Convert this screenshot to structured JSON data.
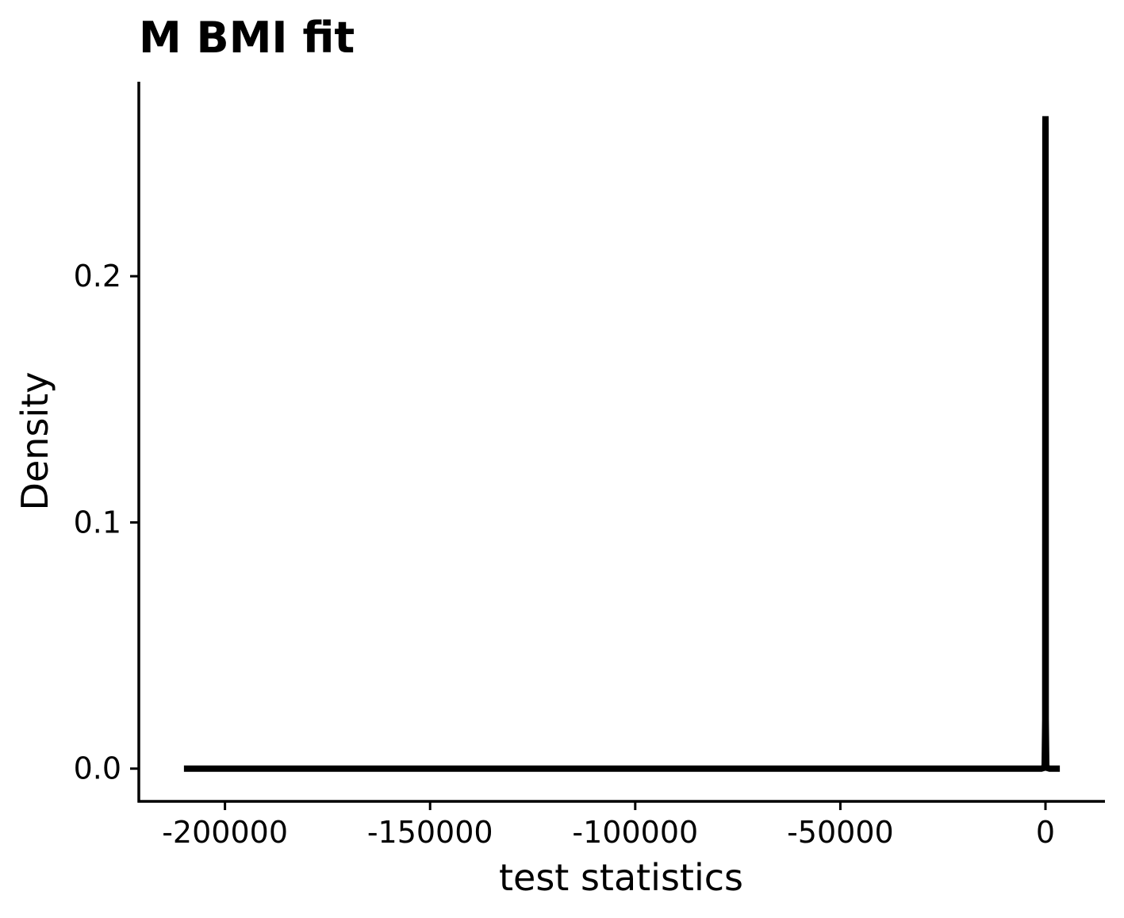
{
  "chart_data": {
    "type": "line",
    "title": "M BMI fit",
    "xlabel": "test statistics",
    "ylabel": "Density",
    "xlim": [
      -221000,
      14500
    ],
    "ylim": [
      -0.0133,
      0.279
    ],
    "xticks": [
      {
        "value": -200000,
        "label": "-200000"
      },
      {
        "value": -150000,
        "label": "-150000"
      },
      {
        "value": -100000,
        "label": "-100000"
      },
      {
        "value": -50000,
        "label": "-50000"
      },
      {
        "value": 0,
        "label": "0"
      }
    ],
    "yticks": [
      {
        "value": 0.0,
        "label": "0.0"
      },
      {
        "value": 0.1,
        "label": "0.1"
      },
      {
        "value": 0.2,
        "label": "0.2"
      }
    ],
    "grid": false,
    "series": [
      {
        "color": "#000000",
        "points": [
          [
            -210000,
            0.0
          ],
          [
            -100000,
            0.0
          ],
          [
            -20000,
            0.0
          ],
          [
            -1000,
            0.0
          ],
          [
            -200,
            0.0004
          ],
          [
            -60,
            0.02
          ],
          [
            -20,
            0.26
          ],
          [
            0,
            0.265
          ],
          [
            20,
            0.26
          ],
          [
            60,
            0.02
          ],
          [
            200,
            0.0004
          ],
          [
            1000,
            0.0
          ],
          [
            3500,
            0.0
          ]
        ]
      }
    ]
  }
}
